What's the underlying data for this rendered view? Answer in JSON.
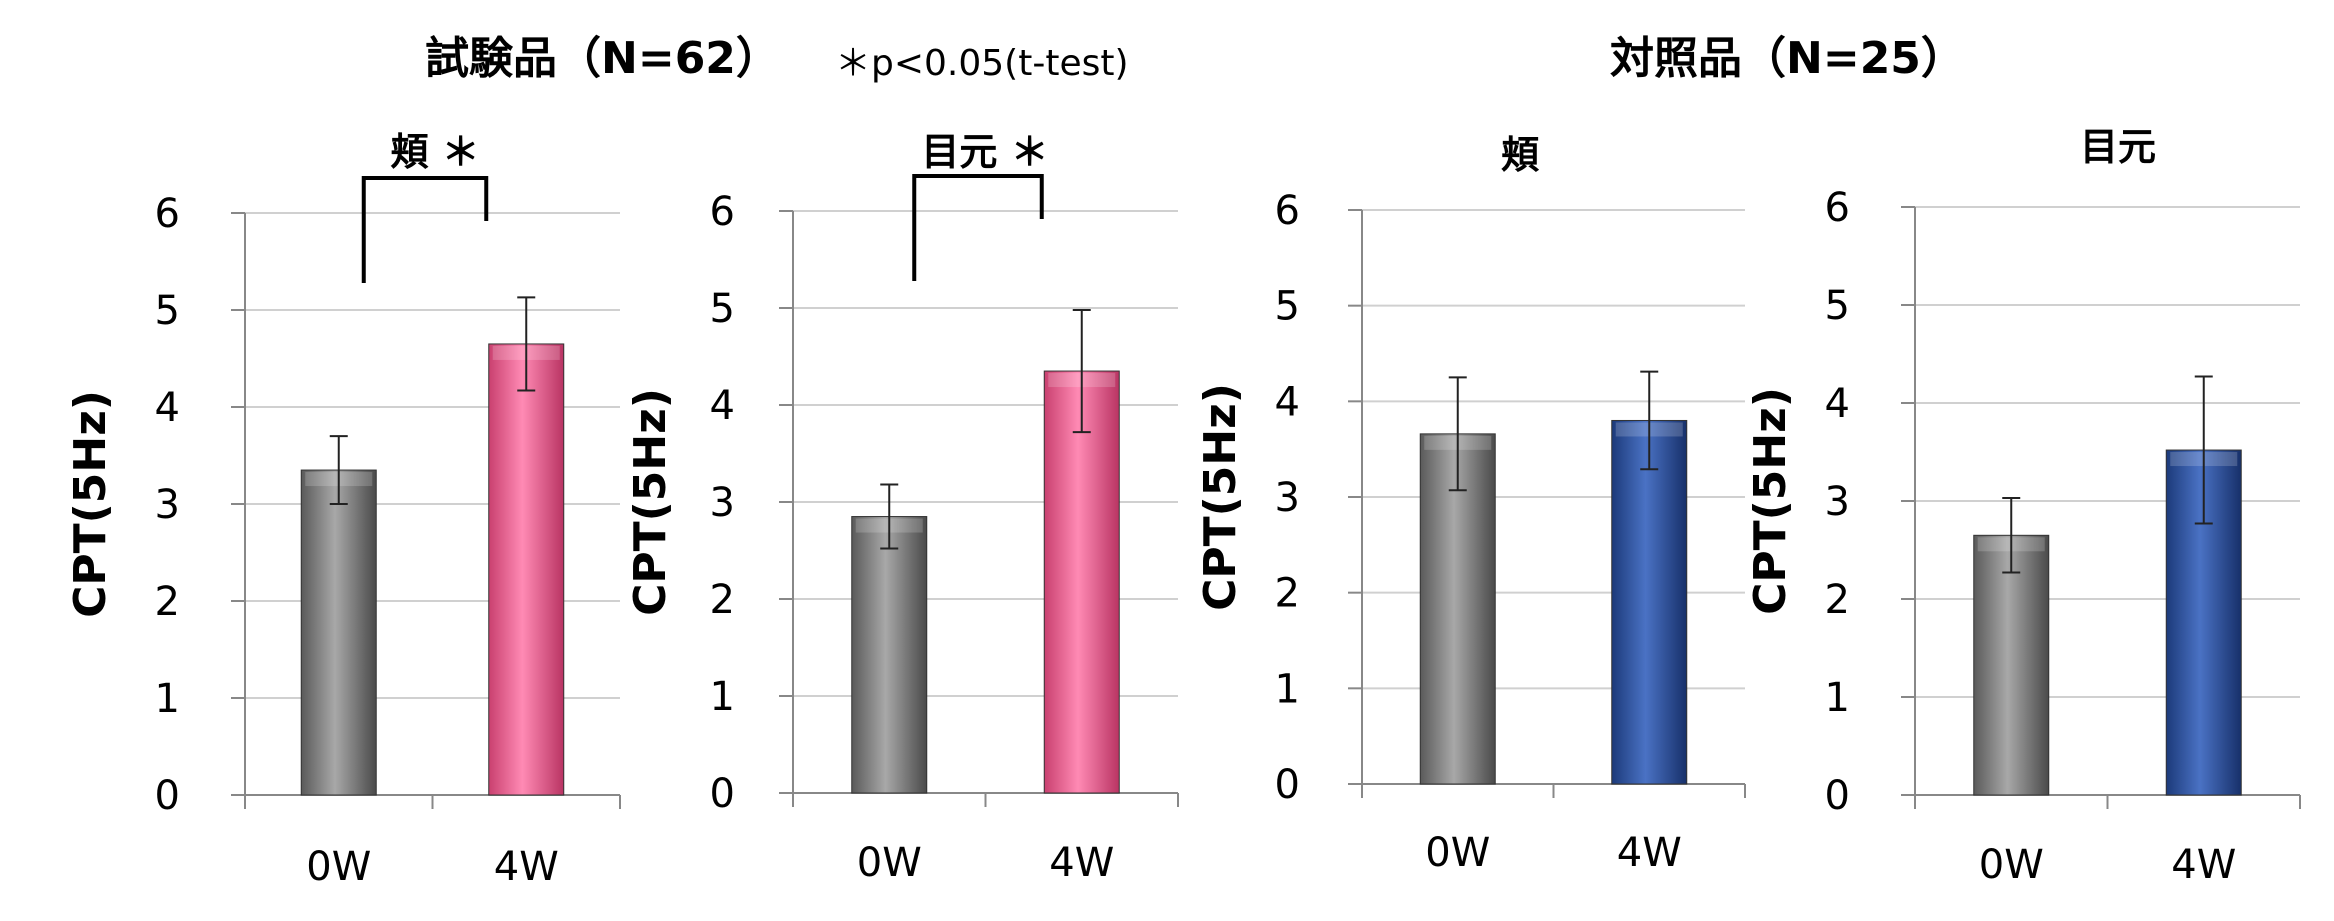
{
  "groups": {
    "test": {
      "title": "試験品（N=62）",
      "note": "＊p<0.05(t-test)"
    },
    "control": {
      "title": "対照品（N=25）"
    }
  },
  "colors": {
    "gray": "#8a8a8a",
    "pink": "#f06c9b",
    "blue": "#2e55a6",
    "grid": "#d0d0d0",
    "axis": "#888888"
  },
  "chart_data": [
    {
      "type": "bar",
      "title": "頬 ＊",
      "ylabel": "CPT(5Hz)",
      "ylim": [
        0,
        6
      ],
      "yticks": [
        0,
        1,
        2,
        3,
        4,
        5,
        6
      ],
      "categories": [
        "0W",
        "4W"
      ],
      "values": [
        3.35,
        4.65
      ],
      "errors": [
        0.35,
        0.48
      ],
      "colors": [
        "gray",
        "pink"
      ],
      "significance": true
    },
    {
      "type": "bar",
      "title": "目元 ＊",
      "ylabel": "CPT(5Hz)",
      "ylim": [
        0,
        6
      ],
      "yticks": [
        0,
        1,
        2,
        3,
        4,
        5,
        6
      ],
      "categories": [
        "0W",
        "4W"
      ],
      "values": [
        2.85,
        4.35
      ],
      "errors": [
        0.33,
        0.63
      ],
      "colors": [
        "gray",
        "pink"
      ],
      "significance": true
    },
    {
      "type": "bar",
      "title": "頬",
      "ylabel": "CPT(5Hz)",
      "ylim": [
        0,
        6
      ],
      "yticks": [
        0,
        1,
        2,
        3,
        4,
        5,
        6
      ],
      "categories": [
        "0W",
        "4W"
      ],
      "values": [
        3.66,
        3.8
      ],
      "errors": [
        0.59,
        0.51
      ],
      "colors": [
        "gray",
        "blue"
      ],
      "significance": false
    },
    {
      "type": "bar",
      "title": "目元",
      "ylabel": "CPT(5Hz)",
      "ylim": [
        0,
        6
      ],
      "yticks": [
        0,
        1,
        2,
        3,
        4,
        5,
        6
      ],
      "categories": [
        "0W",
        "4W"
      ],
      "values": [
        2.65,
        3.52
      ],
      "errors": [
        0.38,
        0.75
      ],
      "colors": [
        "gray",
        "blue"
      ],
      "significance": false
    }
  ]
}
